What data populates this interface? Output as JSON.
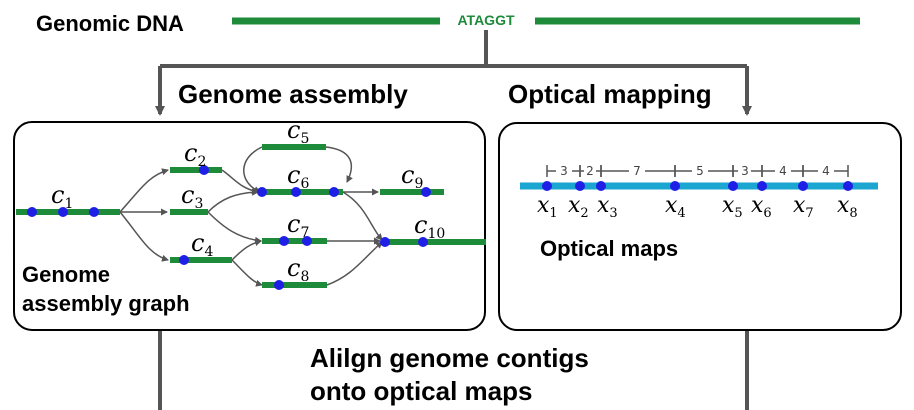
{
  "colors": {
    "contig": "#1e8b3a",
    "dot": "#1f1fe6",
    "optical": "#1aa6d0",
    "arrow": "#555555",
    "frame": "#4d4d4d"
  },
  "header": {
    "title": "Genomic DNA",
    "sequence": "ATAGGT"
  },
  "branches": {
    "left": "Genome assembly",
    "right": "Optical mapping"
  },
  "assembly_panel": {
    "label_line1": "Genome",
    "label_line2": "assembly graph",
    "contigs": [
      {
        "id": "c1",
        "base": "c",
        "sub": "1"
      },
      {
        "id": "c2",
        "base": "c",
        "sub": "2"
      },
      {
        "id": "c3",
        "base": "c",
        "sub": "3"
      },
      {
        "id": "c4",
        "base": "c",
        "sub": "4"
      },
      {
        "id": "c5",
        "base": "c",
        "sub": "5"
      },
      {
        "id": "c6",
        "base": "c",
        "sub": "6"
      },
      {
        "id": "c7",
        "base": "c",
        "sub": "7"
      },
      {
        "id": "c8",
        "base": "c",
        "sub": "8"
      },
      {
        "id": "c9",
        "base": "c",
        "sub": "9"
      },
      {
        "id": "c10",
        "base": "c",
        "sub": "10"
      }
    ]
  },
  "optical_panel": {
    "label": "Optical maps",
    "fragment_sizes": [
      "3",
      "2",
      "7",
      "5",
      "3",
      "4",
      "4"
    ],
    "sites": [
      {
        "base": "x",
        "sub": "1"
      },
      {
        "base": "x",
        "sub": "2"
      },
      {
        "base": "x",
        "sub": "3"
      },
      {
        "base": "x",
        "sub": "4"
      },
      {
        "base": "x",
        "sub": "5"
      },
      {
        "base": "x",
        "sub": "6"
      },
      {
        "base": "x",
        "sub": "7"
      },
      {
        "base": "x",
        "sub": "8"
      }
    ]
  },
  "footer": {
    "line1": "Alilgn genome contigs",
    "line2": "onto optical maps"
  }
}
